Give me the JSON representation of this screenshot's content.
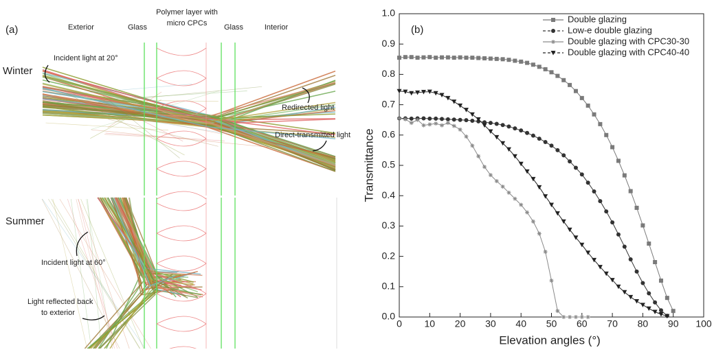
{
  "panel_a": {
    "label": "(a)",
    "columns": [
      "Exterior",
      "Glass",
      "Polymer layer with",
      "micro CPCs",
      "Glass",
      "Interior"
    ],
    "winter": {
      "title": "Winter",
      "incident": "Incident light at 20°",
      "redirected": "Redirected light",
      "direct": "Direct-transmitted light"
    },
    "summer": {
      "title": "Summer",
      "incident": "Incident light at 60°",
      "reflected_1": "Light reflected back",
      "reflected_2": "to exterior"
    }
  },
  "chart_data": {
    "type": "line",
    "panel_label": "(b)",
    "x_label": "Elevation angles (°)",
    "y_label": "Transmittance",
    "xlim": [
      0,
      100
    ],
    "xticks": [
      0,
      10,
      20,
      30,
      40,
      50,
      60,
      70,
      80,
      90,
      100
    ],
    "ylim": [
      0,
      1
    ],
    "yticks": [
      {
        "value": 0,
        "label": "0.0"
      },
      0.1,
      0.2,
      0.3,
      0.4,
      0.5,
      0.6,
      0.7,
      0.8,
      0.9,
      {
        "value": 1,
        "label": "1.0"
      }
    ],
    "legend": "upper right",
    "x": [
      0,
      2,
      4,
      6,
      8,
      10,
      12,
      14,
      16,
      18,
      20,
      22,
      24,
      26,
      28,
      30,
      32,
      34,
      36,
      38,
      40,
      42,
      44,
      46,
      48,
      50,
      52,
      54,
      56,
      58,
      60,
      62,
      64,
      66,
      68,
      70,
      72,
      74,
      76,
      78,
      80,
      82,
      84,
      86,
      88,
      90
    ],
    "series": [
      {
        "name": "Double glazing",
        "color": "#7a7a7a",
        "marker": "square",
        "dash": "solid",
        "values": [
          0.855,
          0.857,
          0.857,
          0.855,
          0.856,
          0.857,
          0.855,
          0.856,
          0.856,
          0.855,
          0.856,
          0.855,
          0.855,
          0.854,
          0.853,
          0.852,
          0.851,
          0.85,
          0.848,
          0.845,
          0.842,
          0.838,
          0.832,
          0.825,
          0.817,
          0.807,
          0.795,
          0.781,
          0.765,
          0.745,
          0.722,
          0.697,
          0.668,
          0.636,
          0.6,
          0.56,
          0.515,
          0.467,
          0.415,
          0.36,
          0.302,
          0.242,
          0.181,
          0.12,
          0.063,
          0.02
        ]
      },
      {
        "name": "Low-e double glazing",
        "color": "#333333",
        "marker": "circle",
        "dash": "dashed",
        "values": [
          0.655,
          0.655,
          0.654,
          0.655,
          0.655,
          0.654,
          0.654,
          0.653,
          0.652,
          0.651,
          0.65,
          0.649,
          0.647,
          0.645,
          0.642,
          0.64,
          0.637,
          0.633,
          0.628,
          0.622,
          0.615,
          0.607,
          0.598,
          0.588,
          0.577,
          0.565,
          0.55,
          0.533,
          0.513,
          0.492,
          0.47,
          0.443,
          0.414,
          0.382,
          0.348,
          0.312,
          0.272,
          0.232,
          0.19,
          0.15,
          0.112,
          0.078,
          0.048,
          0.022,
          0.004,
          null
        ]
      },
      {
        "name": "Double glazing with CPC30-30",
        "color": "#8a8a8a",
        "marker": "star",
        "dash": "solid",
        "values": [
          0.655,
          0.652,
          0.64,
          0.65,
          0.632,
          0.635,
          0.638,
          0.632,
          0.64,
          0.63,
          0.618,
          0.595,
          0.565,
          0.53,
          0.495,
          0.468,
          0.448,
          0.43,
          0.41,
          0.39,
          0.37,
          0.345,
          0.315,
          0.275,
          0.215,
          0.12,
          0.02,
          0,
          0,
          0,
          0,
          0,
          null,
          null,
          null,
          null,
          null,
          null,
          null,
          null,
          null,
          null,
          null,
          null,
          null,
          null
        ]
      },
      {
        "name": "Double glazing with CPC40-40",
        "color": "#222222",
        "marker": "triangle",
        "dash": "dashed",
        "values": [
          0.745,
          0.743,
          0.738,
          0.74,
          0.742,
          0.743,
          0.738,
          0.732,
          0.722,
          0.71,
          0.697,
          0.683,
          0.668,
          0.652,
          0.632,
          0.612,
          0.593,
          0.573,
          0.553,
          0.53,
          0.505,
          0.48,
          0.455,
          0.428,
          0.398,
          0.37,
          0.342,
          0.315,
          0.288,
          0.262,
          0.238,
          0.212,
          0.188,
          0.165,
          0.143,
          0.122,
          0.1,
          0.082,
          0.066,
          0.052,
          0.04,
          0.028,
          0.017,
          0.009,
          0.003,
          null
        ]
      }
    ]
  }
}
